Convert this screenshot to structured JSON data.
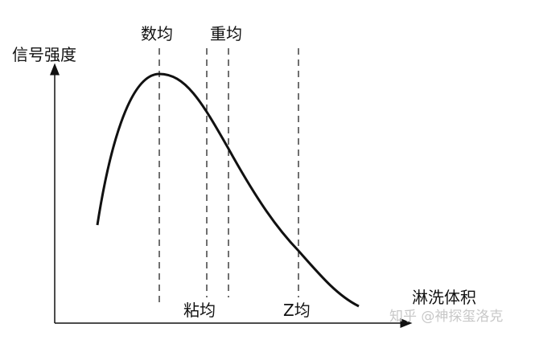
{
  "diagram": {
    "y_axis_label": "信号强度",
    "x_axis_label": "淋洗体积",
    "markers": [
      {
        "id": "number-average",
        "label": "数均",
        "position": "top"
      },
      {
        "id": "viscosity-average",
        "label": "粘均",
        "position": "bottom"
      },
      {
        "id": "weight-average",
        "label": "重均",
        "position": "top"
      },
      {
        "id": "z-average",
        "label": "Z均",
        "position": "bottom"
      }
    ],
    "curve": "distribution-peak",
    "colors": {
      "line": "#111111",
      "watermark": "#c8c8c8"
    }
  },
  "watermark": "知乎 @神探玺洛克"
}
